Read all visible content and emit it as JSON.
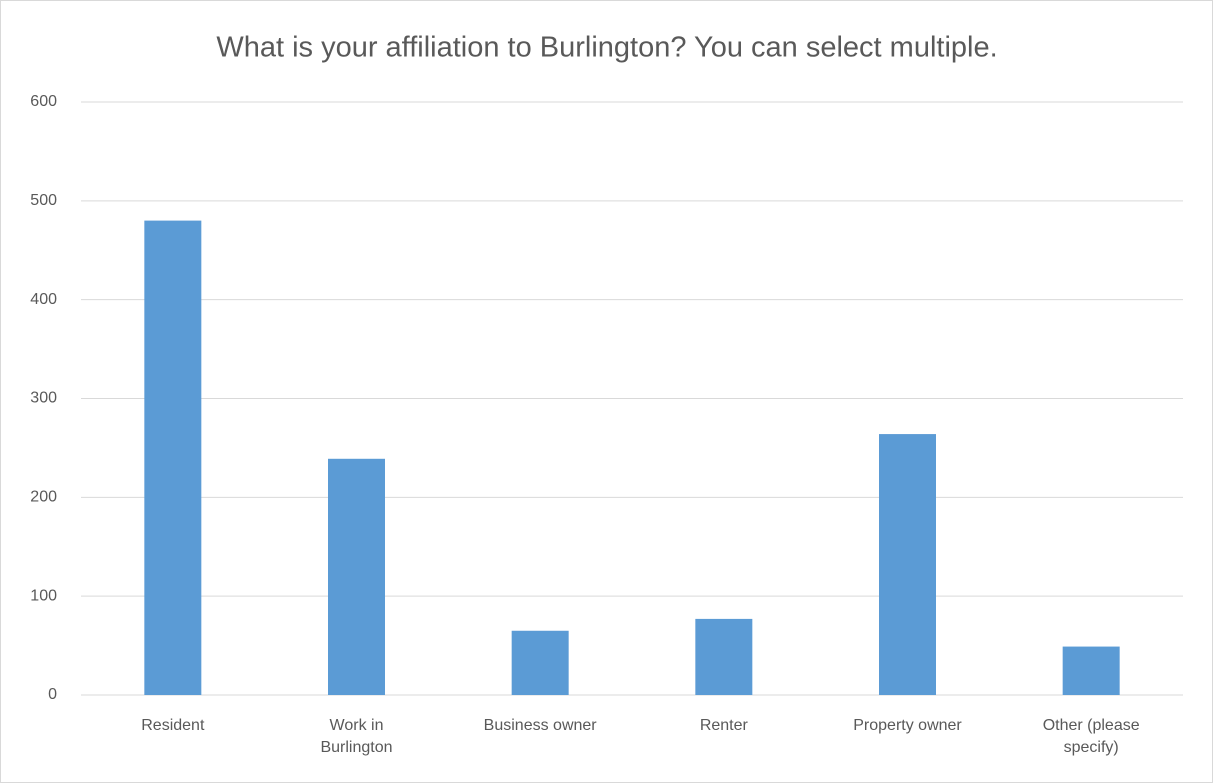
{
  "chart_data": {
    "type": "bar",
    "title": "What is your affiliation to Burlington? You can select multiple.",
    "categories": [
      "Resident",
      "Work in Burlington",
      "Business owner",
      "Renter",
      "Property owner",
      "Other (please specify)"
    ],
    "values": [
      480,
      239,
      65,
      77,
      264,
      49
    ],
    "color": "#5b9bd5",
    "ylim": [
      0,
      600
    ],
    "yticks": [
      0,
      100,
      200,
      300,
      400,
      500,
      600
    ],
    "grid": true
  }
}
